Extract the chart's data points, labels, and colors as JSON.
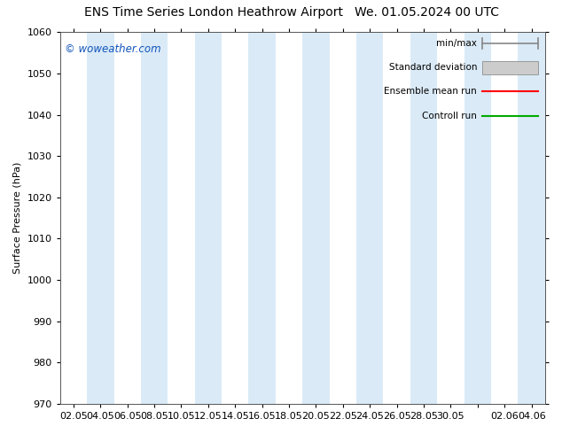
{
  "title_left": "ENS Time Series London Heathrow Airport",
  "title_right": "We. 01.05.2024 00 UTC",
  "ylabel": "Surface Pressure (hPa)",
  "ylim": [
    970,
    1060
  ],
  "yticks": [
    970,
    980,
    990,
    1000,
    1010,
    1020,
    1030,
    1040,
    1050,
    1060
  ],
  "xtick_labels": [
    "02.05",
    "04.05",
    "06.05",
    "08.05",
    "10.05",
    "12.05",
    "14.05",
    "16.05",
    "18.05",
    "20.05",
    "22.05",
    "24.05",
    "26.05",
    "28.05",
    "30.05",
    "",
    "02.06",
    "04.06"
  ],
  "watermark": "© woweather.com",
  "bg_color": "#ffffff",
  "plot_bg_color": "#ffffff",
  "band_color": "#daeaf7",
  "legend_items": [
    "min/max",
    "Standard deviation",
    "Ensemble mean run",
    "Controll run"
  ],
  "title_fontsize": 10,
  "axis_fontsize": 8,
  "tick_fontsize": 8
}
